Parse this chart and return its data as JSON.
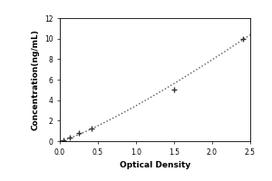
{
  "x_data": [
    0.047,
    0.13,
    0.25,
    0.42,
    1.5,
    2.41
  ],
  "y_data": [
    0.078,
    0.31,
    0.78,
    1.25,
    5.0,
    10.0
  ],
  "xlabel": "Optical Density",
  "ylabel": "Concentration(ng/mL)",
  "xlim": [
    0,
    2.5
  ],
  "ylim": [
    0,
    12
  ],
  "xticks": [
    0,
    0.5,
    1,
    1.5,
    2,
    2.5
  ],
  "yticks": [
    0,
    2,
    4,
    6,
    8,
    10,
    12
  ],
  "line_color": "#555555",
  "marker_color": "#333333",
  "marker_style": "+",
  "background_color": "#ffffff",
  "font_size_label": 6.5,
  "font_size_tick": 5.5,
  "marker_size": 4,
  "marker_edge_width": 1.0,
  "line_width": 1.0,
  "outer_bg": "#d8d8d8"
}
